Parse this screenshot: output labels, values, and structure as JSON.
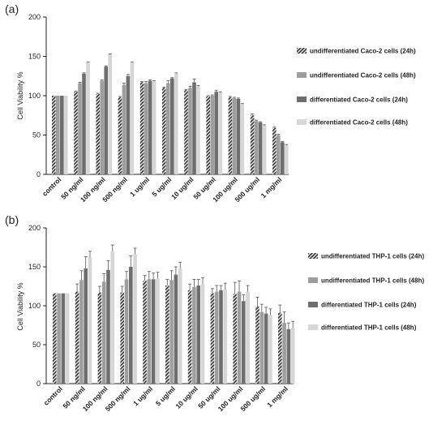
{
  "panels": [
    {
      "panel_label": "(a)",
      "chart_data": {
        "type": "bar",
        "ylabel": "Cell Viability %",
        "ylim": [
          0,
          200
        ],
        "yticks": [
          0,
          50,
          100,
          150,
          200
        ],
        "categories": [
          "control",
          "50 ng/ml",
          "100 ng/ml",
          "500 ng/ml",
          "1 ug/ml",
          "5 ug/ml",
          "10 ug/ml",
          "50 ug/ml",
          "100 ug/ml",
          "500 ug/ml",
          "1 mg/ml"
        ],
        "legend_position": "right",
        "series": [
          {
            "name": "undifferentiated Caco-2 cells (24h)",
            "color": "#3a3a3a",
            "pattern": "hatch",
            "values": [
              100,
              105,
              102,
              98,
              117,
              110,
              107,
              99,
              98,
              75,
              59
            ],
            "errors": [
              0,
              1,
              1,
              1,
              1,
              1,
              1,
              1,
              1,
              2,
              1
            ]
          },
          {
            "name": "undifferentiated Caco-2 cells (48h)",
            "color": "#9e9e9e",
            "pattern": "solid",
            "values": [
              100,
              116,
              119,
              114,
              116,
              116,
              110,
              100,
              97,
              68,
              50
            ],
            "errors": [
              0,
              1,
              1,
              2,
              2,
              3,
              2,
              1,
              1,
              1,
              1
            ]
          },
          {
            "name": "differentiated Caco-2 cells (24h)",
            "color": "#6e6e6e",
            "pattern": "solid",
            "values": [
              100,
              128,
              137,
              125,
              119,
              122,
              117,
              105,
              96,
              66,
              41
            ],
            "errors": [
              0,
              1,
              1,
              2,
              1,
              1,
              4,
              2,
              1,
              1,
              1
            ]
          },
          {
            "name": "differentiated Caco-2 cells (48h)",
            "color": "#d6d6d6",
            "pattern": "solid",
            "values": [
              100,
              142,
              152,
              142,
              118,
              128,
              112,
              104,
              89,
              62,
              37
            ],
            "errors": [
              0,
              1,
              1,
              1,
              1,
              1,
              1,
              1,
              1,
              1,
              1
            ]
          }
        ]
      }
    },
    {
      "panel_label": "(b)",
      "chart_data": {
        "type": "bar",
        "ylabel": "Cell Viability %",
        "ylim": [
          0,
          200
        ],
        "yticks": [
          0,
          50,
          100,
          150,
          200
        ],
        "categories": [
          "control",
          "50 ng/ml",
          "100 ng/ml",
          "500 ng/ml",
          "1 ug/ml",
          "5 ug/ml",
          "10 ug/ml",
          "50 ug/ml",
          "100 ug/ml",
          "500 ug/ml",
          "1 mg/ml"
        ],
        "legend_position": "right",
        "series": [
          {
            "name": "undifferentiated THP-1 cells (24h)",
            "color": "#3a3a3a",
            "pattern": "hatch",
            "values": [
              116,
              118,
              117,
              117,
              132,
              126,
              120,
              116,
              115,
              99,
              91
            ],
            "errors": [
              0,
              10,
              8,
              8,
              7,
              8,
              8,
              6,
              15,
              12,
              10
            ]
          },
          {
            "name": "undifferentiated THP-1 cells (48h)",
            "color": "#9e9e9e",
            "pattern": "solid",
            "values": [
              116,
              133,
              131,
              134,
              134,
              133,
              124,
              118,
              118,
              92,
              78
            ],
            "errors": [
              0,
              12,
              10,
              10,
              10,
              12,
              10,
              8,
              14,
              10,
              14
            ]
          },
          {
            "name": "differentiated THP-1 cells (24h)",
            "color": "#6e6e6e",
            "pattern": "solid",
            "values": [
              116,
              148,
              146,
              150,
              134,
              140,
              126,
              120,
              106,
              90,
              70
            ],
            "errors": [
              0,
              15,
              12,
              14,
              8,
              10,
              8,
              6,
              8,
              8,
              8
            ]
          },
          {
            "name": "differentiated THP-1 cells (48h)",
            "color": "#d6d6d6",
            "pattern": "solid",
            "values": [
              116,
              162,
              170,
              166,
              135,
              148,
              128,
              121,
              118,
              88,
              72
            ],
            "errors": [
              0,
              8,
              8,
              8,
              8,
              8,
              8,
              8,
              8,
              8,
              8
            ]
          }
        ]
      }
    }
  ]
}
